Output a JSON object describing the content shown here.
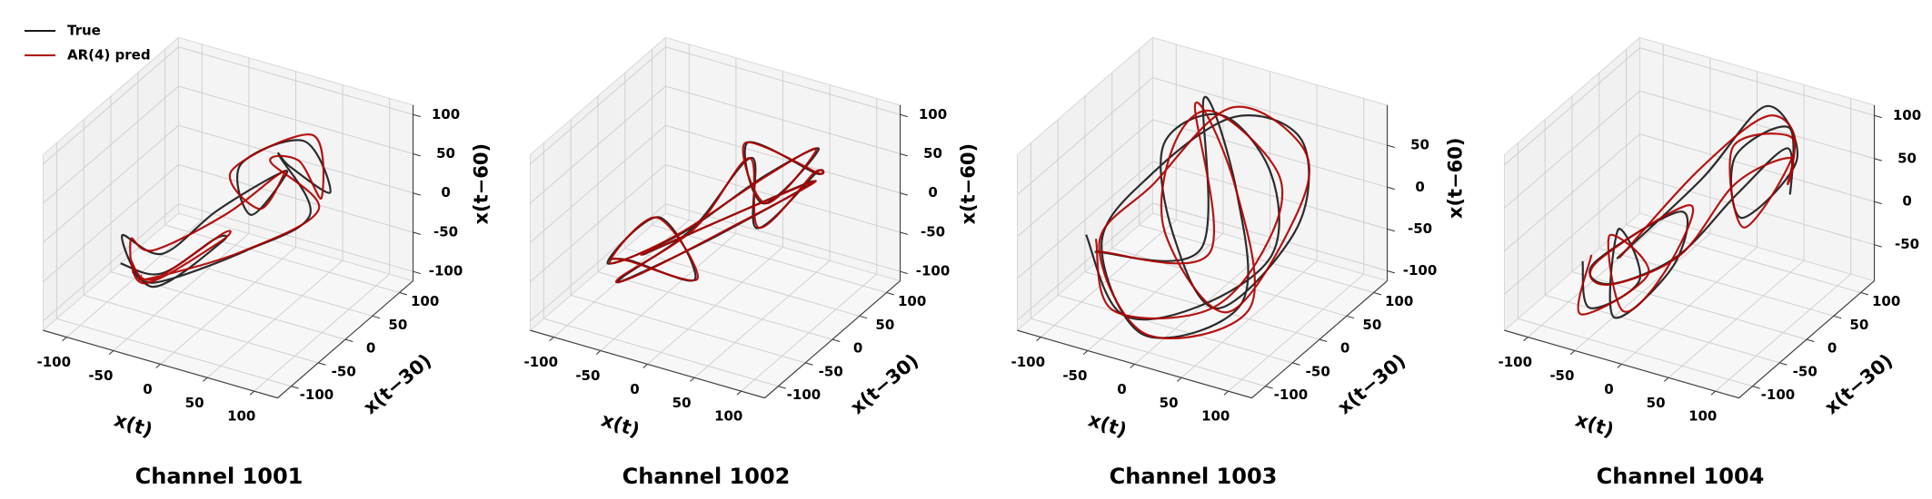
{
  "chart_data": [
    {
      "type": "line3d",
      "title": "Channel 1001",
      "xlabel": "x(t)",
      "ylabel": "x(t−30)",
      "zlabel": "x(t−60)",
      "legend": "upper left",
      "xlim": [
        -125,
        125
      ],
      "ylim": [
        -125,
        125
      ],
      "zlim": [
        -112,
        112
      ],
      "xticks": [
        -100,
        -50,
        0,
        50,
        100
      ],
      "yticks": [
        -100,
        -50,
        0,
        50,
        100
      ],
      "zticks": [
        -100,
        -50,
        0,
        50,
        100
      ],
      "grid": true,
      "series": [
        {
          "name": "True",
          "color": "#1a1a1a",
          "x": [
            -80,
            -60,
            -20,
            10,
            -40,
            -90,
            -70,
            -30,
            20,
            50,
            30,
            -10,
            40,
            80,
            60,
            20,
            70,
            30,
            -40,
            -85
          ],
          "y": [
            -60,
            -20,
            10,
            -30,
            -70,
            -40,
            0,
            30,
            50,
            20,
            -10,
            40,
            70,
            50,
            10,
            60,
            30,
            -20,
            -60,
            -30
          ],
          "z": [
            -50,
            -80,
            -40,
            -10,
            -60,
            -30,
            -70,
            -20,
            30,
            60,
            20,
            40,
            70,
            30,
            80,
            50,
            10,
            -20,
            -60,
            -80
          ]
        },
        {
          "name": "AR(4) pred",
          "color": "#b00000",
          "x": [
            -74,
            -66,
            -14,
            4,
            -46,
            -84,
            -76,
            -24,
            26,
            44,
            36,
            -16,
            46,
            74,
            66,
            14,
            76,
            24,
            -46,
            -79
          ],
          "y": [
            -54,
            -26,
            16,
            -24,
            -76,
            -34,
            -6,
            36,
            44,
            26,
            -4,
            34,
            76,
            44,
            16,
            54,
            36,
            -14,
            -66,
            -24
          ],
          "z": [
            -44,
            -86,
            -34,
            -16,
            -54,
            -36,
            -64,
            -26,
            36,
            54,
            26,
            34,
            76,
            24,
            86,
            44,
            16,
            -26,
            -54,
            -86
          ]
        }
      ]
    },
    {
      "type": "line3d",
      "title": "Channel 1002",
      "xlabel": "x(t)",
      "ylabel": "x(t−30)",
      "zlabel": "x(t−60)",
      "xlim": [
        -125,
        125
      ],
      "ylim": [
        -125,
        125
      ],
      "zlim": [
        -112,
        112
      ],
      "xticks": [
        -100,
        -50,
        0,
        50,
        100
      ],
      "yticks": [
        -100,
        -50,
        0,
        50,
        100
      ],
      "zticks": [
        -100,
        -50,
        0,
        50,
        100
      ],
      "grid": true,
      "series": [
        {
          "color": "#1a1a1a",
          "x": [
            -90,
            -50,
            -10,
            -60,
            -80,
            -20,
            30,
            70,
            40,
            0,
            60,
            90,
            50,
            10,
            -30,
            -70,
            -40,
            20,
            80,
            -60
          ],
          "y": [
            -40,
            -70,
            -20,
            0,
            -60,
            -30,
            40,
            70,
            20,
            60,
            80,
            30,
            -10,
            50,
            10,
            -50,
            -80,
            -20,
            40,
            -30
          ],
          "z": [
            -60,
            -30,
            -70,
            -20,
            -50,
            -10,
            40,
            70,
            20,
            60,
            30,
            70,
            10,
            50,
            -30,
            -70,
            -40,
            0,
            50,
            -50
          ]
        },
        {
          "color": "#b00000",
          "x": [
            -84,
            -56,
            -4,
            -66,
            -74,
            -26,
            36,
            64,
            46,
            -6,
            66,
            84,
            56,
            4,
            -24,
            -76,
            -34,
            14,
            86,
            -66
          ],
          "y": [
            -46,
            -64,
            -26,
            6,
            -66,
            -24,
            34,
            76,
            14,
            66,
            74,
            36,
            -16,
            56,
            4,
            -44,
            -86,
            -14,
            34,
            -24
          ],
          "z": [
            -54,
            -36,
            -64,
            -26,
            -44,
            -16,
            46,
            64,
            26,
            54,
            36,
            64,
            16,
            44,
            -24,
            -76,
            -34,
            -6,
            56,
            -56
          ]
        }
      ]
    },
    {
      "type": "line3d",
      "title": "Channel 1003",
      "xlabel": "x(t)",
      "ylabel": "x(t−30)",
      "zlabel": "x(t−60)",
      "xlim": [
        -125,
        125
      ],
      "ylim": [
        -125,
        125
      ],
      "zlim": [
        -112,
        98
      ],
      "xticks": [
        -100,
        -50,
        0,
        50,
        100
      ],
      "yticks": [
        -100,
        -50,
        0,
        50,
        100
      ],
      "zticks": [
        -100,
        -50,
        0,
        50
      ],
      "grid": true,
      "series": [
        {
          "color": "#1a1a1a",
          "x": [
            -95,
            -40,
            30,
            80,
            50,
            -20,
            -70,
            -30,
            40,
            90,
            60,
            0,
            -60,
            -90,
            -10,
            70,
            20,
            -50,
            10,
            -80
          ],
          "y": [
            -50,
            -80,
            -60,
            -10,
            40,
            70,
            50,
            0,
            -40,
            20,
            80,
            60,
            10,
            -30,
            -90,
            -50,
            30,
            90,
            -20,
            -60
          ],
          "z": [
            -30,
            -90,
            -70,
            -20,
            40,
            70,
            30,
            -40,
            -80,
            0,
            60,
            80,
            20,
            -50,
            -100,
            -60,
            10,
            70,
            -30,
            -40
          ]
        },
        {
          "color": "#b00000",
          "x": [
            -88,
            -46,
            36,
            74,
            56,
            -26,
            -64,
            -36,
            46,
            84,
            66,
            -6,
            -54,
            -96,
            -4,
            76,
            14,
            -56,
            16,
            -74
          ],
          "y": [
            -44,
            -86,
            -54,
            -16,
            46,
            64,
            56,
            -6,
            -34,
            26,
            74,
            66,
            4,
            -24,
            -96,
            -44,
            36,
            84,
            -14,
            -66
          ],
          "z": [
            -36,
            -84,
            -76,
            -14,
            34,
            76,
            24,
            -34,
            -86,
            6,
            54,
            86,
            14,
            -56,
            -94,
            -66,
            16,
            64,
            -36,
            -34
          ]
        }
      ]
    },
    {
      "type": "line3d",
      "title": "Channel 1004",
      "xlabel": "x(t)",
      "ylabel": "x(t−30)",
      "zlabel": "x(t−60)",
      "xlim": [
        -125,
        125
      ],
      "ylim": [
        -125,
        125
      ],
      "zlim": [
        -92,
        112
      ],
      "xticks": [
        -100,
        -50,
        0,
        50,
        100
      ],
      "yticks": [
        -100,
        -50,
        0,
        50,
        100
      ],
      "zticks": [
        -50,
        0,
        50,
        100
      ],
      "grid": true,
      "series": [
        {
          "color": "#1a1a1a",
          "x": [
            -85,
            -60,
            -30,
            -70,
            -40,
            0,
            -20,
            -90,
            -50,
            10,
            40,
            70,
            90,
            60,
            20,
            50,
            80,
            30,
            -10,
            -60
          ],
          "y": [
            -50,
            -80,
            -40,
            -10,
            -70,
            -30,
            20,
            -20,
            -60,
            -40,
            20,
            60,
            30,
            80,
            50,
            10,
            60,
            90,
            40,
            -30
          ],
          "z": [
            -40,
            -70,
            -50,
            -20,
            -80,
            -30,
            0,
            -60,
            -50,
            -10,
            40,
            80,
            50,
            90,
            60,
            20,
            70,
            100,
            30,
            -40
          ]
        },
        {
          "color": "#b00000",
          "x": [
            -79,
            -66,
            -24,
            -76,
            -34,
            -6,
            -14,
            -84,
            -56,
            16,
            34,
            76,
            84,
            66,
            14,
            56,
            74,
            36,
            -16,
            -54
          ],
          "y": [
            -44,
            -86,
            -34,
            -16,
            -64,
            -36,
            26,
            -26,
            -54,
            -46,
            26,
            54,
            36,
            74,
            56,
            4,
            66,
            84,
            46,
            -36
          ],
          "z": [
            -34,
            -76,
            -44,
            -26,
            -74,
            -36,
            6,
            -54,
            -56,
            -4,
            46,
            74,
            56,
            84,
            66,
            14,
            76,
            94,
            36,
            -34
          ]
        }
      ]
    }
  ]
}
